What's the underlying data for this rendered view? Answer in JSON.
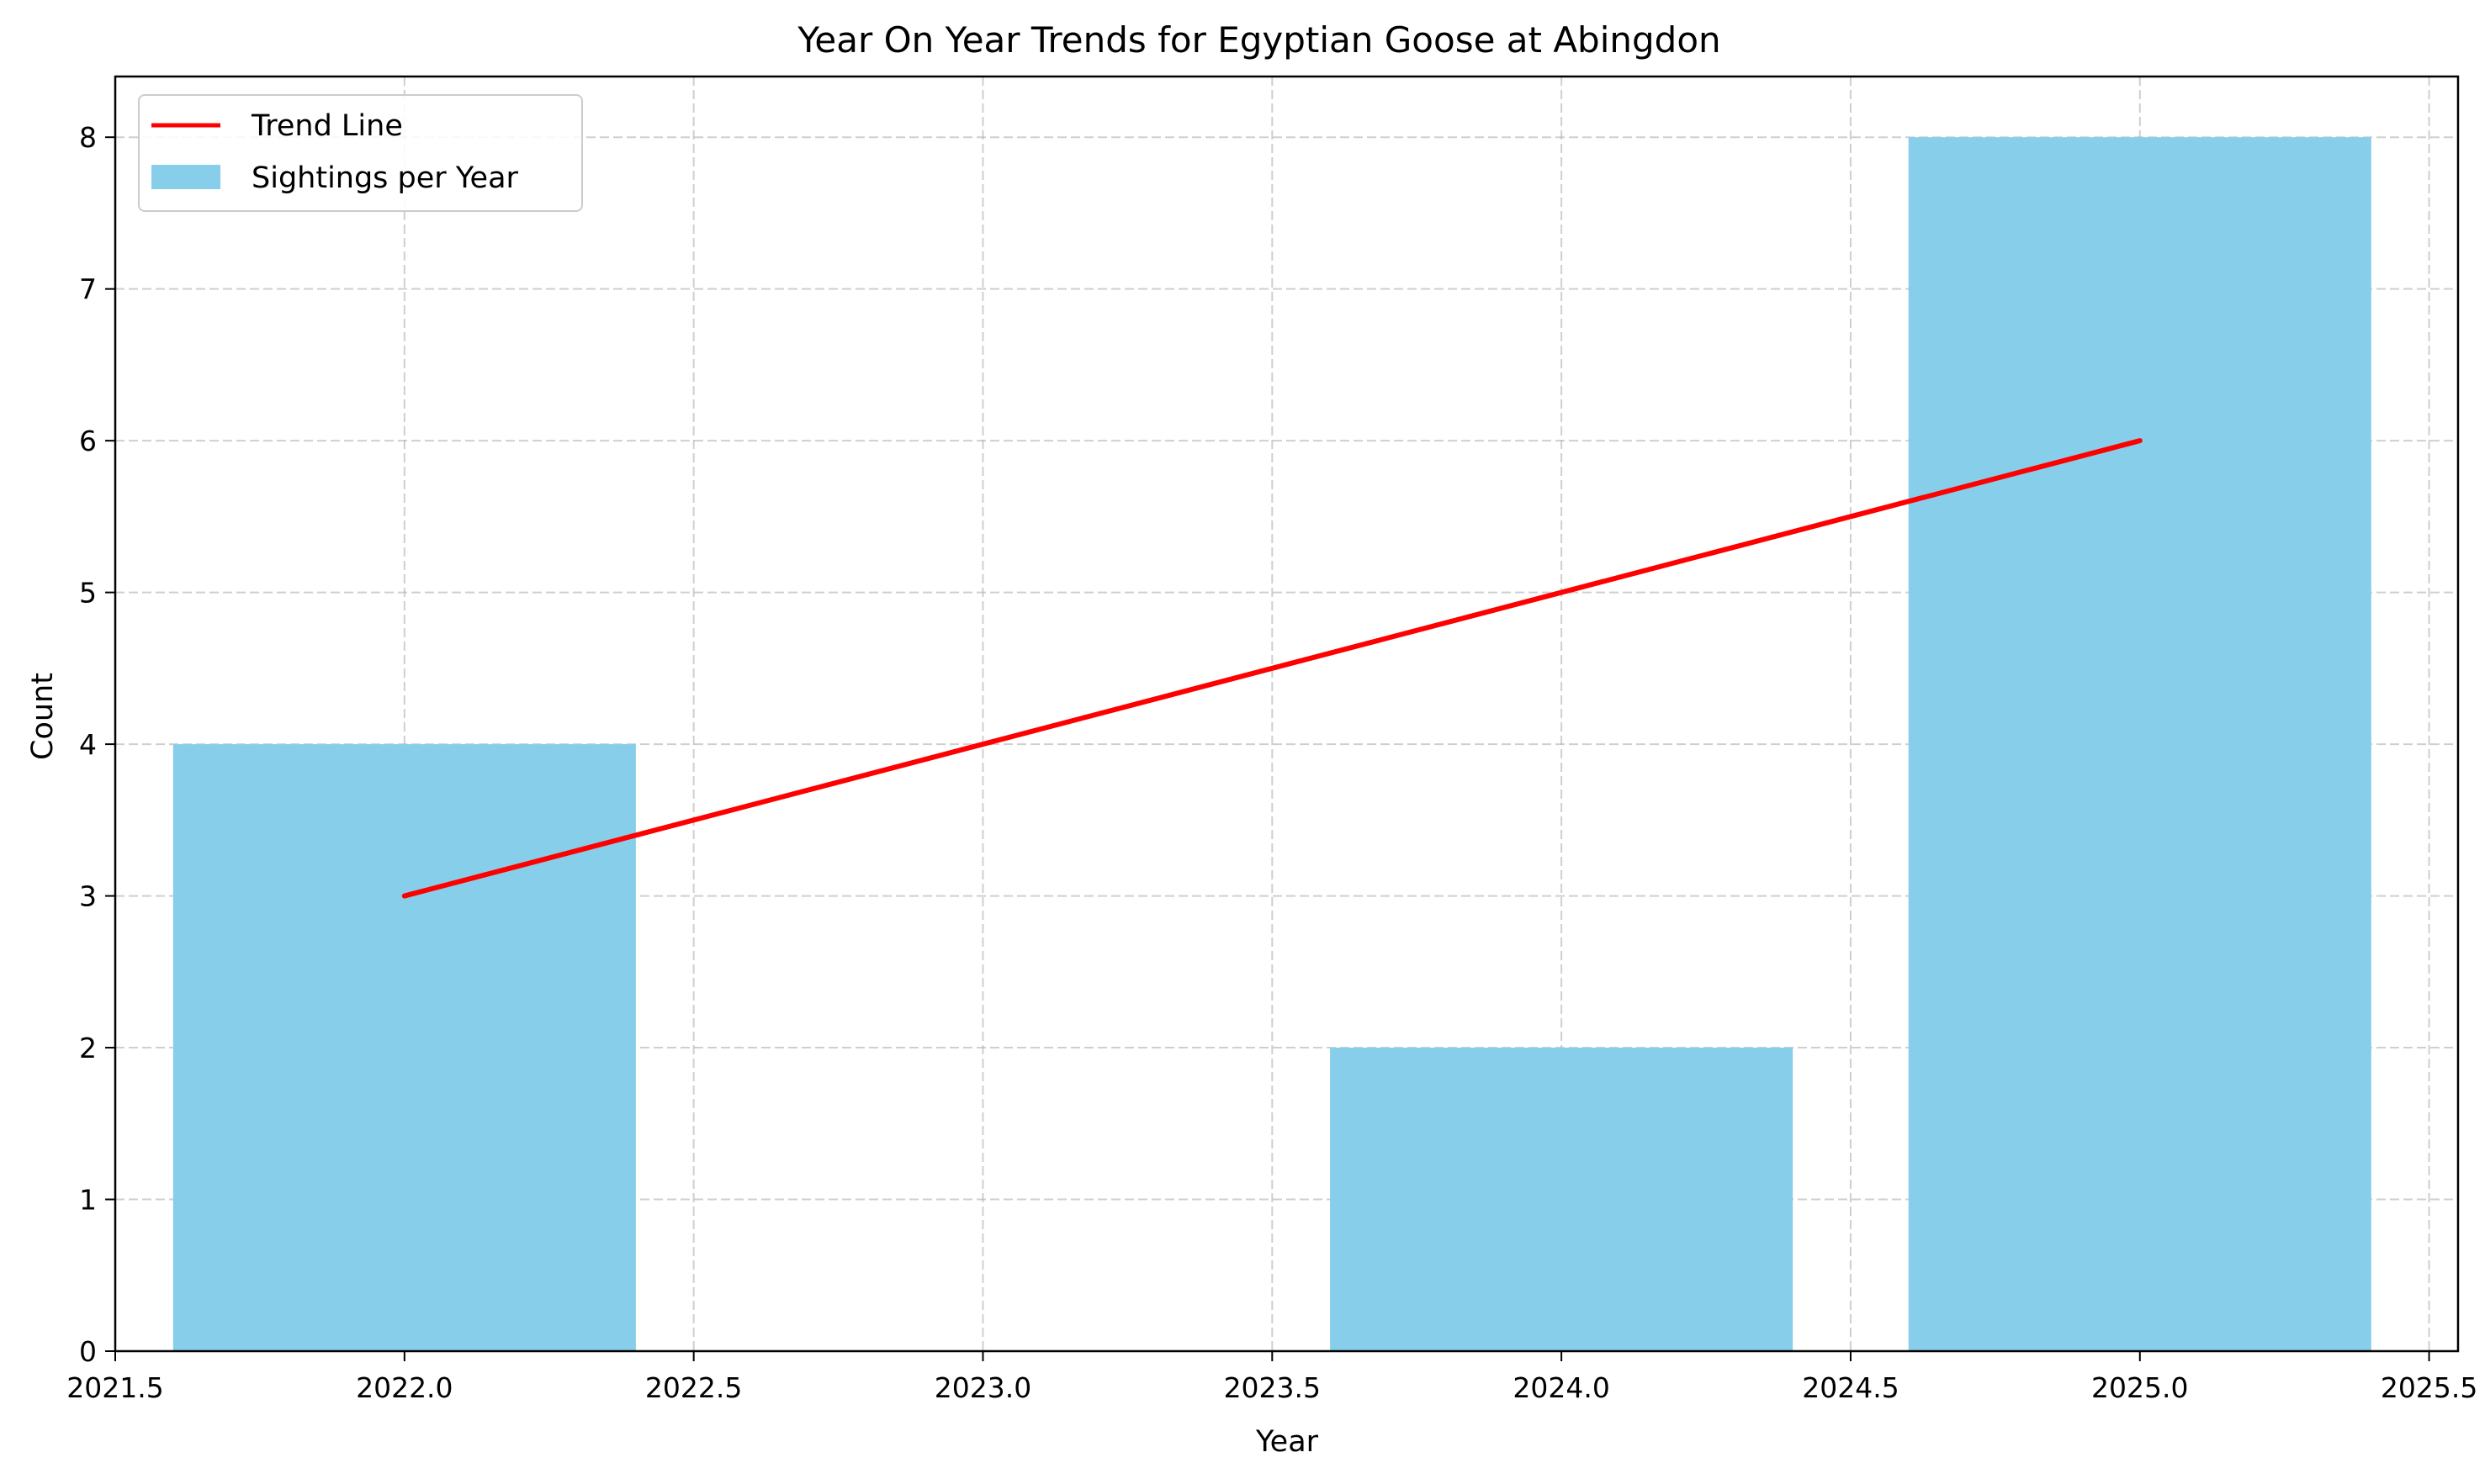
{
  "chart_data": {
    "type": "bar",
    "title": "Year On Year Trends for Egyptian Goose at Abingdon",
    "xlabel": "Year",
    "ylabel": "Count",
    "xlim": [
      2021.5,
      2025.55
    ],
    "ylim": [
      0,
      8.4
    ],
    "x_ticks": [
      2021.5,
      2022.0,
      2022.5,
      2023.0,
      2023.5,
      2024.0,
      2024.5,
      2025.0,
      2025.5
    ],
    "x_tick_labels": [
      "2021.5",
      "2022.0",
      "2022.5",
      "2023.0",
      "2023.5",
      "2024.0",
      "2024.5",
      "2025.0",
      "2025.5"
    ],
    "y_ticks": [
      0,
      1,
      2,
      3,
      4,
      5,
      6,
      7,
      8
    ],
    "y_tick_labels": [
      "0",
      "1",
      "2",
      "3",
      "4",
      "5",
      "6",
      "7",
      "8"
    ],
    "grid": true,
    "legend_position": "top-left",
    "bar_width": 0.8,
    "series": [
      {
        "name": "Sightings per Year",
        "kind": "bar",
        "color": "#87ceeb",
        "x": [
          2022,
          2024,
          2025
        ],
        "values": [
          4,
          2,
          8
        ]
      },
      {
        "name": "Trend Line",
        "kind": "line",
        "color": "#ff0000",
        "x": [
          2022,
          2025
        ],
        "values": [
          3,
          6
        ]
      }
    ]
  }
}
